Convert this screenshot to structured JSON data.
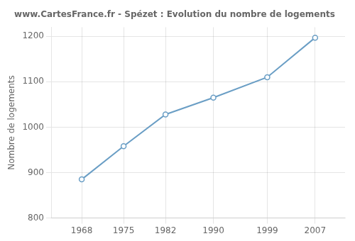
{
  "chart_data": {
    "type": "line",
    "title": "www.CartesFrance.fr - Spézet : Evolution du nombre de logements",
    "ylabel": "Nombre de logements",
    "x": [
      1968,
      1975,
      1982,
      1990,
      1999,
      2007
    ],
    "values": [
      885,
      958,
      1028,
      1065,
      1110,
      1197
    ],
    "xlim": [
      1963,
      2012
    ],
    "ylim": [
      800,
      1220
    ],
    "xticks": [
      1968,
      1975,
      1982,
      1990,
      1999,
      2007
    ],
    "yticks": [
      800,
      900,
      1000,
      1100,
      1200
    ],
    "color": "#6a9ec5",
    "marker": "circle",
    "grid": true
  }
}
